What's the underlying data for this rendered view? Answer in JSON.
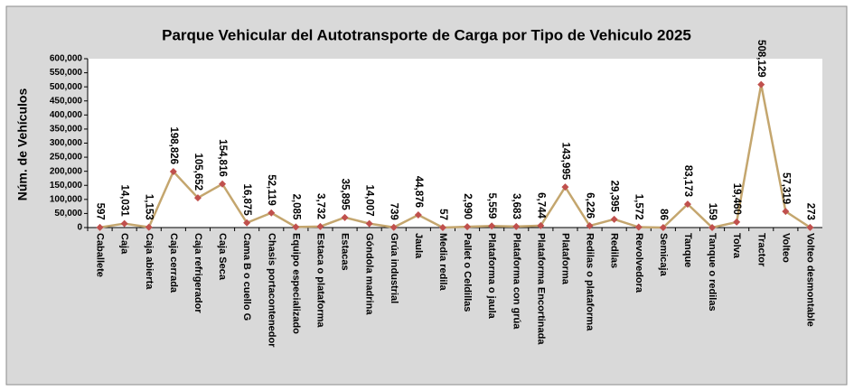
{
  "chart_data": {
    "type": "line",
    "title": "Parque Vehicular del Autotransporte de Carga por Tipo de Vehiculo 2025",
    "y_label": "Núm. de Vehículos",
    "categories": [
      "Caballete",
      "Caja",
      "Caja abierta",
      "Caja cerrada",
      "Caja refrigerador",
      "Caja Seca",
      "Cama B o cuello G",
      "Chasis portacontenedor",
      "Equipo especializado",
      "Estaca o plataforma",
      "Estacas",
      "Góndola madrina",
      "Grúa industrial",
      "Jaula",
      "Media redila",
      "Pallet o Celdillas",
      "Plataforma o jaula",
      "Plataforma con grúa",
      "Plataforma Encortinada",
      "Plataforma",
      "Redilas o plataforma",
      "Redilas",
      "Revolvedora",
      "Semicaja",
      "Tanque",
      "Tanque o redilas",
      "Tolva",
      "Tractor",
      "Volteo",
      "Volteo desmontable"
    ],
    "series": [
      {
        "name": "Vehículos",
        "color": "#c4a66e",
        "marker_color": "#c0504d",
        "values": [
          597,
          14031,
          1153,
          198826,
          105652,
          154816,
          16875,
          52119,
          2085,
          3732,
          35895,
          14007,
          739,
          44876,
          57,
          2990,
          5559,
          3683,
          6744,
          143995,
          6226,
          29395,
          1572,
          86,
          83173,
          159,
          19460,
          508129,
          57319,
          273
        ],
        "value_labels": [
          "597",
          "14,031",
          "1,153",
          "198,826",
          "105,652",
          "154,816",
          "16,875",
          "52,119",
          "2,085",
          "3,732",
          "35,895",
          "14,007",
          "739",
          "44,876",
          "57",
          "2,990",
          "5,559",
          "3,683",
          "6,744",
          "143,995",
          "6,226",
          "29,395",
          "1,572",
          "86",
          "83,173",
          "159",
          "19,460",
          "508,129",
          "57,319",
          "273"
        ]
      }
    ],
    "ylim": [
      0,
      600000
    ],
    "yticks": [
      0,
      {
        "value": 50000,
        "label": "50,000"
      },
      {
        "value": 100000,
        "label": "100,000"
      },
      {
        "value": 150000,
        "label": "150,000"
      },
      {
        "value": 200000,
        "label": "200,000"
      },
      {
        "value": 250000,
        "label": "250,000"
      },
      {
        "value": 300000,
        "label": "300,000"
      },
      {
        "value": 350000,
        "label": "350,000"
      },
      {
        "value": 400000,
        "label": "400,000"
      },
      {
        "value": 450000,
        "label": "450,000"
      },
      {
        "value": 500000,
        "label": "500,000"
      },
      {
        "value": 550000,
        "label": "550,000"
      },
      {
        "value": 600000,
        "label": "600,000"
      }
    ],
    "grid": false
  }
}
